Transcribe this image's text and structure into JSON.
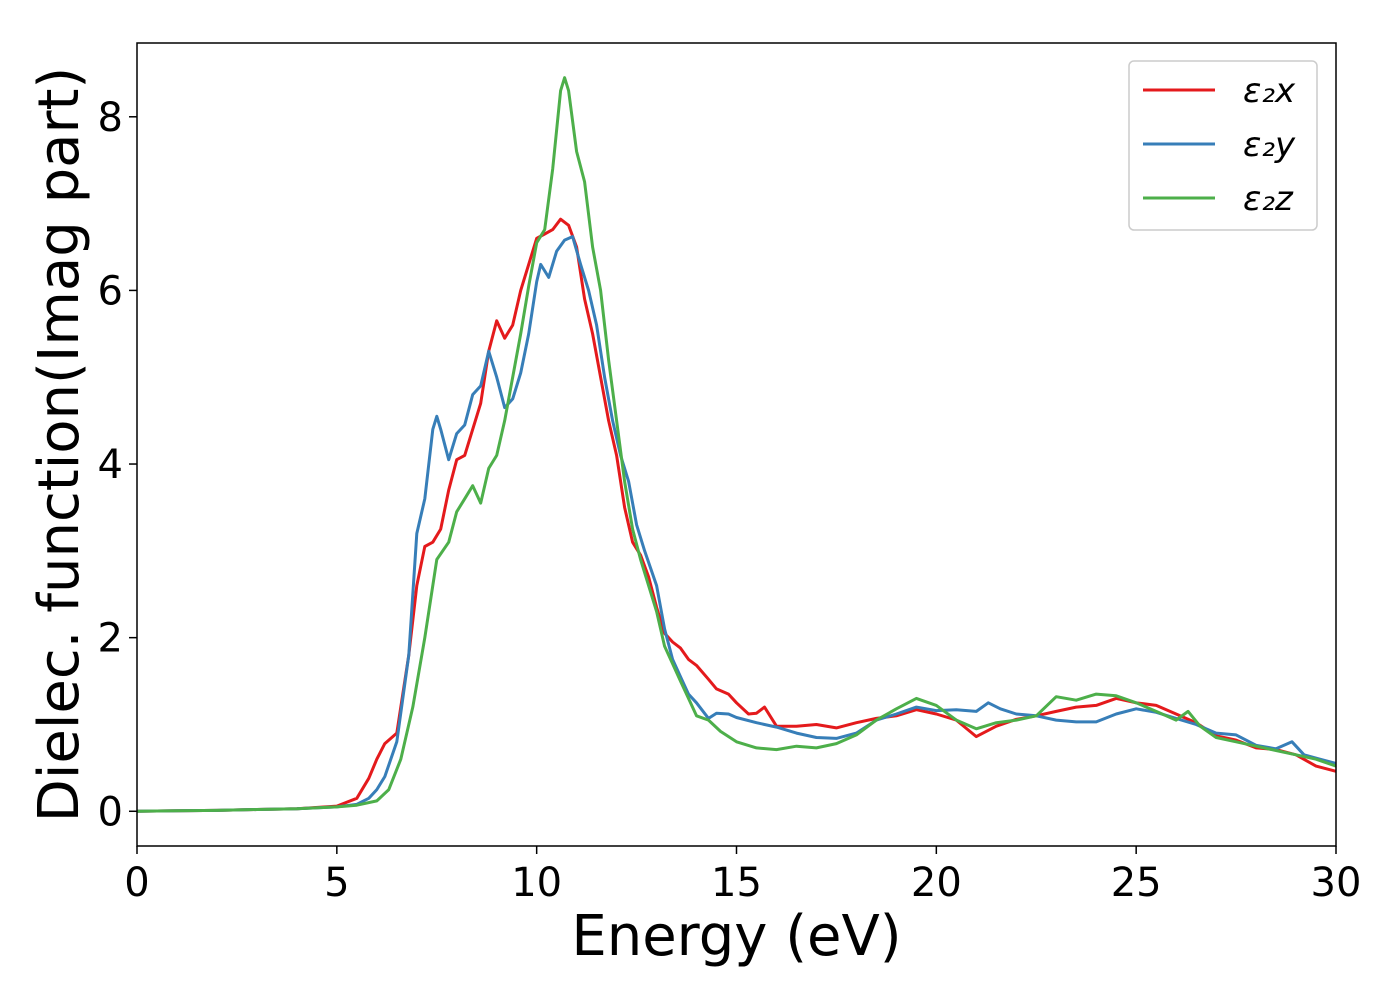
{
  "chart_data": {
    "type": "line",
    "title": "",
    "xlabel": "Energy (eV)",
    "ylabel": "Dielec. function(Imag part)",
    "xlim": [
      0,
      30
    ],
    "ylim": [
      -0.4,
      8.85
    ],
    "xticks": [
      0,
      5,
      10,
      15,
      20,
      25,
      30
    ],
    "yticks": [
      0,
      2,
      4,
      6,
      8
    ],
    "grid": false,
    "legend_position": "upper-right",
    "series": [
      {
        "name": "ε₂x",
        "color": "#e41a1c",
        "points": [
          [
            0,
            0
          ],
          [
            1,
            0.005
          ],
          [
            2,
            0.01
          ],
          [
            3,
            0.02
          ],
          [
            4,
            0.03
          ],
          [
            5,
            0.06
          ],
          [
            5.5,
            0.15
          ],
          [
            5.8,
            0.38
          ],
          [
            6.0,
            0.6
          ],
          [
            6.2,
            0.78
          ],
          [
            6.5,
            0.9
          ],
          [
            6.8,
            1.8
          ],
          [
            7.0,
            2.6
          ],
          [
            7.2,
            3.05
          ],
          [
            7.4,
            3.1
          ],
          [
            7.6,
            3.25
          ],
          [
            7.8,
            3.7
          ],
          [
            8.0,
            4.05
          ],
          [
            8.2,
            4.1
          ],
          [
            8.4,
            4.4
          ],
          [
            8.6,
            4.7
          ],
          [
            8.8,
            5.3
          ],
          [
            9.0,
            5.65
          ],
          [
            9.2,
            5.45
          ],
          [
            9.4,
            5.6
          ],
          [
            9.6,
            6.0
          ],
          [
            9.8,
            6.3
          ],
          [
            10.0,
            6.6
          ],
          [
            10.2,
            6.65
          ],
          [
            10.4,
            6.7
          ],
          [
            10.6,
            6.82
          ],
          [
            10.8,
            6.75
          ],
          [
            11.0,
            6.5
          ],
          [
            11.2,
            5.9
          ],
          [
            11.4,
            5.5
          ],
          [
            11.6,
            5.0
          ],
          [
            11.8,
            4.5
          ],
          [
            12.0,
            4.1
          ],
          [
            12.2,
            3.5
          ],
          [
            12.4,
            3.1
          ],
          [
            12.6,
            2.95
          ],
          [
            12.8,
            2.7
          ],
          [
            13.0,
            2.35
          ],
          [
            13.2,
            2.05
          ],
          [
            13.4,
            1.95
          ],
          [
            13.6,
            1.88
          ],
          [
            13.8,
            1.75
          ],
          [
            14.0,
            1.68
          ],
          [
            14.3,
            1.52
          ],
          [
            14.5,
            1.41
          ],
          [
            14.8,
            1.35
          ],
          [
            15.0,
            1.25
          ],
          [
            15.3,
            1.12
          ],
          [
            15.5,
            1.13
          ],
          [
            15.7,
            1.2
          ],
          [
            16.0,
            0.98
          ],
          [
            16.5,
            0.98
          ],
          [
            17.0,
            1.0
          ],
          [
            17.5,
            0.96
          ],
          [
            18.0,
            1.02
          ],
          [
            18.5,
            1.07
          ],
          [
            19.0,
            1.1
          ],
          [
            19.5,
            1.17
          ],
          [
            20.0,
            1.12
          ],
          [
            20.5,
            1.05
          ],
          [
            21.0,
            0.86
          ],
          [
            21.5,
            0.98
          ],
          [
            22.0,
            1.06
          ],
          [
            22.5,
            1.1
          ],
          [
            23.0,
            1.15
          ],
          [
            23.5,
            1.2
          ],
          [
            24.0,
            1.22
          ],
          [
            24.5,
            1.3
          ],
          [
            25.0,
            1.25
          ],
          [
            25.5,
            1.22
          ],
          [
            26.0,
            1.12
          ],
          [
            26.5,
            1.02
          ],
          [
            27.0,
            0.87
          ],
          [
            27.5,
            0.82
          ],
          [
            28.0,
            0.73
          ],
          [
            28.5,
            0.71
          ],
          [
            29.0,
            0.65
          ],
          [
            29.5,
            0.52
          ],
          [
            30.0,
            0.46
          ]
        ]
      },
      {
        "name": "ε₂y",
        "color": "#377eb8",
        "points": [
          [
            0,
            0
          ],
          [
            1,
            0.005
          ],
          [
            2,
            0.01
          ],
          [
            3,
            0.02
          ],
          [
            4,
            0.03
          ],
          [
            5,
            0.05
          ],
          [
            5.5,
            0.08
          ],
          [
            5.8,
            0.15
          ],
          [
            6.0,
            0.25
          ],
          [
            6.2,
            0.4
          ],
          [
            6.5,
            0.8
          ],
          [
            6.8,
            1.8
          ],
          [
            7.0,
            3.2
          ],
          [
            7.2,
            3.6
          ],
          [
            7.4,
            4.4
          ],
          [
            7.5,
            4.55
          ],
          [
            7.6,
            4.4
          ],
          [
            7.8,
            4.05
          ],
          [
            8.0,
            4.35
          ],
          [
            8.2,
            4.45
          ],
          [
            8.4,
            4.8
          ],
          [
            8.6,
            4.9
          ],
          [
            8.8,
            5.3
          ],
          [
            9.0,
            5.0
          ],
          [
            9.2,
            4.65
          ],
          [
            9.4,
            4.75
          ],
          [
            9.6,
            5.05
          ],
          [
            9.8,
            5.5
          ],
          [
            10.0,
            6.1
          ],
          [
            10.1,
            6.3
          ],
          [
            10.3,
            6.15
          ],
          [
            10.5,
            6.45
          ],
          [
            10.7,
            6.58
          ],
          [
            10.9,
            6.62
          ],
          [
            11.1,
            6.3
          ],
          [
            11.3,
            6.0
          ],
          [
            11.5,
            5.6
          ],
          [
            11.7,
            5.0
          ],
          [
            11.9,
            4.5
          ],
          [
            12.1,
            4.1
          ],
          [
            12.3,
            3.8
          ],
          [
            12.5,
            3.3
          ],
          [
            12.7,
            3.0
          ],
          [
            13.0,
            2.6
          ],
          [
            13.2,
            2.1
          ],
          [
            13.4,
            1.75
          ],
          [
            13.6,
            1.55
          ],
          [
            13.8,
            1.35
          ],
          [
            14.0,
            1.25
          ],
          [
            14.3,
            1.07
          ],
          [
            14.5,
            1.13
          ],
          [
            14.8,
            1.12
          ],
          [
            15.0,
            1.08
          ],
          [
            15.5,
            1.02
          ],
          [
            16.0,
            0.97
          ],
          [
            16.5,
            0.9
          ],
          [
            17.0,
            0.85
          ],
          [
            17.5,
            0.84
          ],
          [
            18.0,
            0.9
          ],
          [
            18.5,
            1.05
          ],
          [
            19.0,
            1.12
          ],
          [
            19.5,
            1.2
          ],
          [
            20.0,
            1.16
          ],
          [
            20.5,
            1.17
          ],
          [
            21.0,
            1.15
          ],
          [
            21.3,
            1.25
          ],
          [
            21.6,
            1.18
          ],
          [
            22.0,
            1.12
          ],
          [
            22.5,
            1.1
          ],
          [
            23.0,
            1.05
          ],
          [
            23.5,
            1.03
          ],
          [
            24.0,
            1.03
          ],
          [
            24.5,
            1.12
          ],
          [
            25.0,
            1.18
          ],
          [
            25.5,
            1.14
          ],
          [
            26.0,
            1.07
          ],
          [
            26.5,
            1.0
          ],
          [
            27.0,
            0.9
          ],
          [
            27.5,
            0.88
          ],
          [
            28.0,
            0.76
          ],
          [
            28.5,
            0.72
          ],
          [
            28.9,
            0.8
          ],
          [
            29.2,
            0.65
          ],
          [
            29.6,
            0.6
          ],
          [
            30.0,
            0.55
          ]
        ]
      },
      {
        "name": "ε₂z",
        "color": "#4daf4a",
        "points": [
          [
            0,
            0
          ],
          [
            1,
            0.005
          ],
          [
            2,
            0.01
          ],
          [
            3,
            0.02
          ],
          [
            4,
            0.03
          ],
          [
            5,
            0.05
          ],
          [
            5.5,
            0.07
          ],
          [
            6.0,
            0.12
          ],
          [
            6.3,
            0.25
          ],
          [
            6.6,
            0.6
          ],
          [
            6.9,
            1.2
          ],
          [
            7.2,
            2.0
          ],
          [
            7.5,
            2.9
          ],
          [
            7.8,
            3.1
          ],
          [
            8.0,
            3.45
          ],
          [
            8.2,
            3.6
          ],
          [
            8.4,
            3.75
          ],
          [
            8.6,
            3.55
          ],
          [
            8.8,
            3.95
          ],
          [
            9.0,
            4.1
          ],
          [
            9.2,
            4.5
          ],
          [
            9.4,
            5.0
          ],
          [
            9.6,
            5.5
          ],
          [
            9.8,
            6.05
          ],
          [
            10.0,
            6.55
          ],
          [
            10.2,
            6.7
          ],
          [
            10.4,
            7.4
          ],
          [
            10.6,
            8.3
          ],
          [
            10.7,
            8.45
          ],
          [
            10.8,
            8.3
          ],
          [
            11.0,
            7.6
          ],
          [
            11.2,
            7.25
          ],
          [
            11.4,
            6.5
          ],
          [
            11.6,
            6.0
          ],
          [
            11.8,
            5.2
          ],
          [
            12.0,
            4.5
          ],
          [
            12.2,
            3.8
          ],
          [
            12.4,
            3.25
          ],
          [
            12.6,
            2.9
          ],
          [
            12.8,
            2.6
          ],
          [
            13.0,
            2.3
          ],
          [
            13.2,
            1.9
          ],
          [
            13.4,
            1.7
          ],
          [
            13.6,
            1.5
          ],
          [
            13.8,
            1.3
          ],
          [
            14.0,
            1.1
          ],
          [
            14.3,
            1.05
          ],
          [
            14.6,
            0.92
          ],
          [
            15.0,
            0.8
          ],
          [
            15.5,
            0.73
          ],
          [
            16.0,
            0.71
          ],
          [
            16.5,
            0.75
          ],
          [
            17.0,
            0.73
          ],
          [
            17.5,
            0.78
          ],
          [
            18.0,
            0.88
          ],
          [
            18.5,
            1.05
          ],
          [
            19.0,
            1.18
          ],
          [
            19.5,
            1.3
          ],
          [
            20.0,
            1.22
          ],
          [
            20.5,
            1.05
          ],
          [
            21.0,
            0.95
          ],
          [
            21.5,
            1.02
          ],
          [
            22.0,
            1.05
          ],
          [
            22.5,
            1.1
          ],
          [
            23.0,
            1.32
          ],
          [
            23.5,
            1.28
          ],
          [
            24.0,
            1.35
          ],
          [
            24.5,
            1.33
          ],
          [
            25.0,
            1.25
          ],
          [
            25.5,
            1.15
          ],
          [
            26.0,
            1.05
          ],
          [
            26.3,
            1.15
          ],
          [
            26.6,
            0.98
          ],
          [
            27.0,
            0.85
          ],
          [
            27.5,
            0.8
          ],
          [
            28.0,
            0.75
          ],
          [
            28.5,
            0.7
          ],
          [
            29.0,
            0.65
          ],
          [
            29.5,
            0.6
          ],
          [
            30.0,
            0.52
          ]
        ]
      }
    ]
  }
}
